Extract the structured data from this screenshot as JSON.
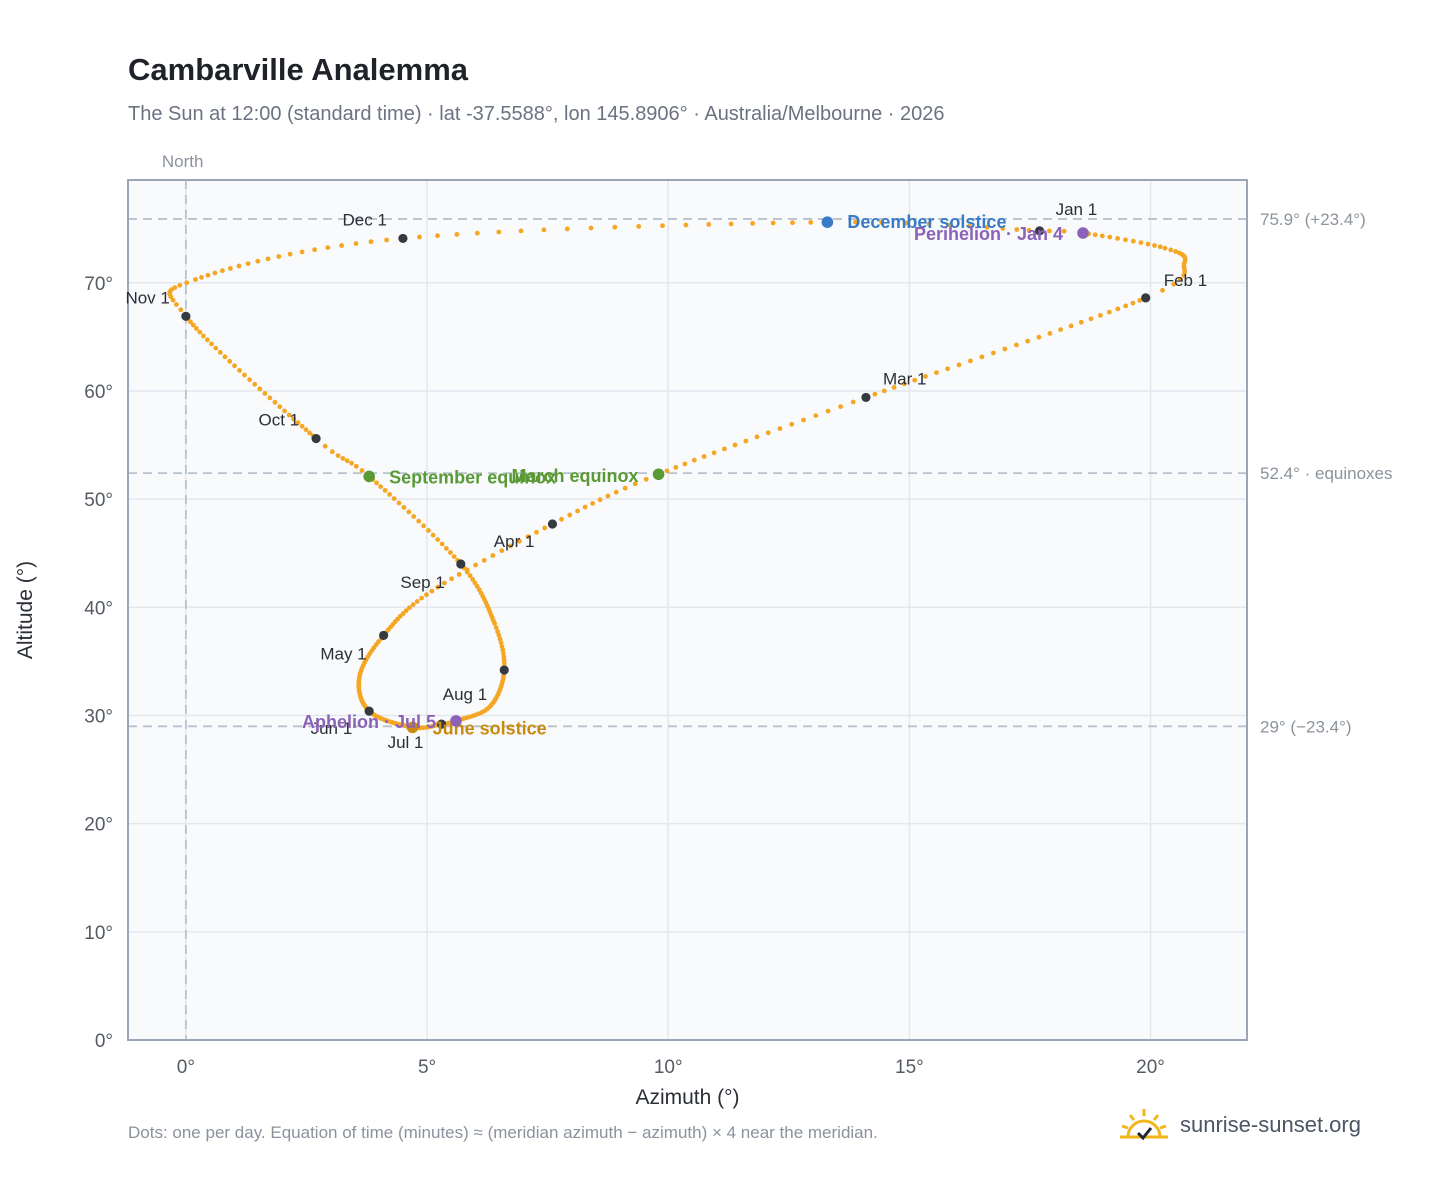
{
  "header": {
    "title": "Cambarville Analemma",
    "subtitle": "The Sun at 12:00 (standard time) · lat -37.5588°, lon 145.8906° · Australia/Melbourne · 2026"
  },
  "footer": {
    "note": "Dots: one per day. Equation of time (minutes) ≈ (meridian azimuth − azimuth) × 4 near the meridian.",
    "brand": "sunrise-sunset.org"
  },
  "colors": {
    "path": "#f5a623",
    "month_marker": "#343a40",
    "solstice_december": "#3a7bc8",
    "solstice_june": "#c98a10",
    "equinox": "#5a9a36",
    "apsis": "#8c62b8",
    "plot_bg": "#f8fafc",
    "grid": "#e3e8ee",
    "refline": "#b8c2cc",
    "frame": "#9aa6b4"
  },
  "chart_data": {
    "type": "scatter",
    "title": "Cambarville Analemma",
    "xlabel": "Azimuth (°)",
    "ylabel": "Altitude (°)",
    "xlim": [
      -1.2,
      22
    ],
    "ylim": [
      0,
      79.5
    ],
    "x_ticks": [
      0,
      5,
      10,
      15,
      20
    ],
    "x_tick_labels": [
      "0°",
      "5°",
      "10°",
      "15°",
      "20°"
    ],
    "y_ticks": [
      0,
      10,
      20,
      30,
      40,
      50,
      60,
      70
    ],
    "y_tick_labels": [
      "0°",
      "10°",
      "20°",
      "30°",
      "40°",
      "50°",
      "60°",
      "70°"
    ],
    "grid": true,
    "north_line": {
      "x": 0,
      "label": "North"
    },
    "reference_lines": [
      {
        "y": 75.9,
        "label": "75.9° (+23.4°)"
      },
      {
        "y": 52.4,
        "label": "52.4° · equinoxes"
      },
      {
        "y": 29,
        "label": "29° (−23.4°)"
      }
    ],
    "daily_path_keyframes": [
      {
        "day": 1,
        "x": 17.7,
        "y": 74.8
      },
      {
        "day": 4,
        "x": 18.6,
        "y": 74.6
      },
      {
        "day": 16,
        "x": 20.3,
        "y": 73.2
      },
      {
        "day": 24,
        "x": 20.7,
        "y": 71.8
      },
      {
        "day": 32,
        "x": 19.9,
        "y": 68.6
      },
      {
        "day": 60,
        "x": 14.1,
        "y": 59.4
      },
      {
        "day": 79,
        "x": 9.8,
        "y": 52.3
      },
      {
        "day": 91,
        "x": 7.6,
        "y": 47.7
      },
      {
        "day": 106,
        "x": 5.1,
        "y": 41.5
      },
      {
        "day": 121,
        "x": 4.1,
        "y": 37.4
      },
      {
        "day": 135,
        "x": 3.6,
        "y": 33.6
      },
      {
        "day": 152,
        "x": 3.8,
        "y": 30.4
      },
      {
        "day": 172,
        "x": 4.7,
        "y": 28.9
      },
      {
        "day": 182,
        "x": 5.3,
        "y": 29.2
      },
      {
        "day": 186,
        "x": 5.6,
        "y": 29.5
      },
      {
        "day": 198,
        "x": 6.3,
        "y": 30.8
      },
      {
        "day": 213,
        "x": 6.6,
        "y": 34.2
      },
      {
        "day": 226,
        "x": 6.4,
        "y": 38.5
      },
      {
        "day": 244,
        "x": 5.7,
        "y": 44.0
      },
      {
        "day": 265,
        "x": 3.8,
        "y": 52.1
      },
      {
        "day": 274,
        "x": 2.7,
        "y": 55.6
      },
      {
        "day": 305,
        "x": 0.0,
        "y": 66.9
      },
      {
        "day": 316,
        "x": 0.2,
        "y": 70.3
      },
      {
        "day": 335,
        "x": 4.5,
        "y": 74.1
      },
      {
        "day": 355,
        "x": 13.3,
        "y": 75.6
      },
      {
        "day": 366,
        "x": 17.7,
        "y": 74.8
      }
    ],
    "month_markers": [
      {
        "label": "Jan 1",
        "x": 17.7,
        "y": 74.8,
        "anchor": "start",
        "dx": 16,
        "dy": -16
      },
      {
        "label": "Feb 1",
        "x": 19.9,
        "y": 68.6,
        "anchor": "start",
        "dx": 18,
        "dy": -12
      },
      {
        "label": "Mar 1",
        "x": 14.1,
        "y": 59.4,
        "anchor": "start",
        "dx": 17,
        "dy": -13
      },
      {
        "label": "Apr 1",
        "x": 7.6,
        "y": 47.7,
        "anchor": "end",
        "dx": -18,
        "dy": 23
      },
      {
        "label": "May 1",
        "x": 4.1,
        "y": 37.4,
        "anchor": "end",
        "dx": -17,
        "dy": 24
      },
      {
        "label": "Jun 1",
        "x": 3.8,
        "y": 30.4,
        "anchor": "end",
        "dx": -17,
        "dy": 23
      },
      {
        "label": "Jul 1",
        "x": 5.3,
        "y": 29.2,
        "anchor": "end",
        "dx": -18,
        "dy": 24
      },
      {
        "label": "Aug 1",
        "x": 6.6,
        "y": 34.2,
        "anchor": "end",
        "dx": -17,
        "dy": 30
      },
      {
        "label": "Sep 1",
        "x": 5.7,
        "y": 44.0,
        "anchor": "end",
        "dx": -16,
        "dy": 24
      },
      {
        "label": "Oct 1",
        "x": 2.7,
        "y": 55.6,
        "anchor": "end",
        "dx": -17,
        "dy": -13
      },
      {
        "label": "Nov 1",
        "x": 0.0,
        "y": 66.9,
        "anchor": "end",
        "dx": -16,
        "dy": -13
      },
      {
        "label": "Dec 1",
        "x": 4.5,
        "y": 74.1,
        "anchor": "end",
        "dx": -16,
        "dy": -13
      }
    ],
    "events": [
      {
        "label": "December solstice",
        "x": 13.3,
        "y": 75.6,
        "kind": "solstice_december",
        "dx": 20,
        "dy": 6
      },
      {
        "label": "Perihelion · Jan 4",
        "x": 18.6,
        "y": 74.6,
        "kind": "apsis",
        "anchor": "end",
        "dx": -20,
        "dy": 7
      },
      {
        "label": "March equinox",
        "x": 9.8,
        "y": 52.3,
        "kind": "equinox",
        "anchor": "end",
        "dx": -20,
        "dy": 8
      },
      {
        "label": "September equinox",
        "x": 3.8,
        "y": 52.1,
        "kind": "equinox",
        "dx": 20,
        "dy": 7
      },
      {
        "label": "June solstice",
        "x": 4.7,
        "y": 28.9,
        "kind": "solstice_june",
        "dx": 20,
        "dy": 7
      },
      {
        "label": "Aphelion · Jul 5",
        "x": 5.6,
        "y": 29.5,
        "kind": "apsis",
        "anchor": "end",
        "dx": -20,
        "dy": 7
      }
    ]
  }
}
